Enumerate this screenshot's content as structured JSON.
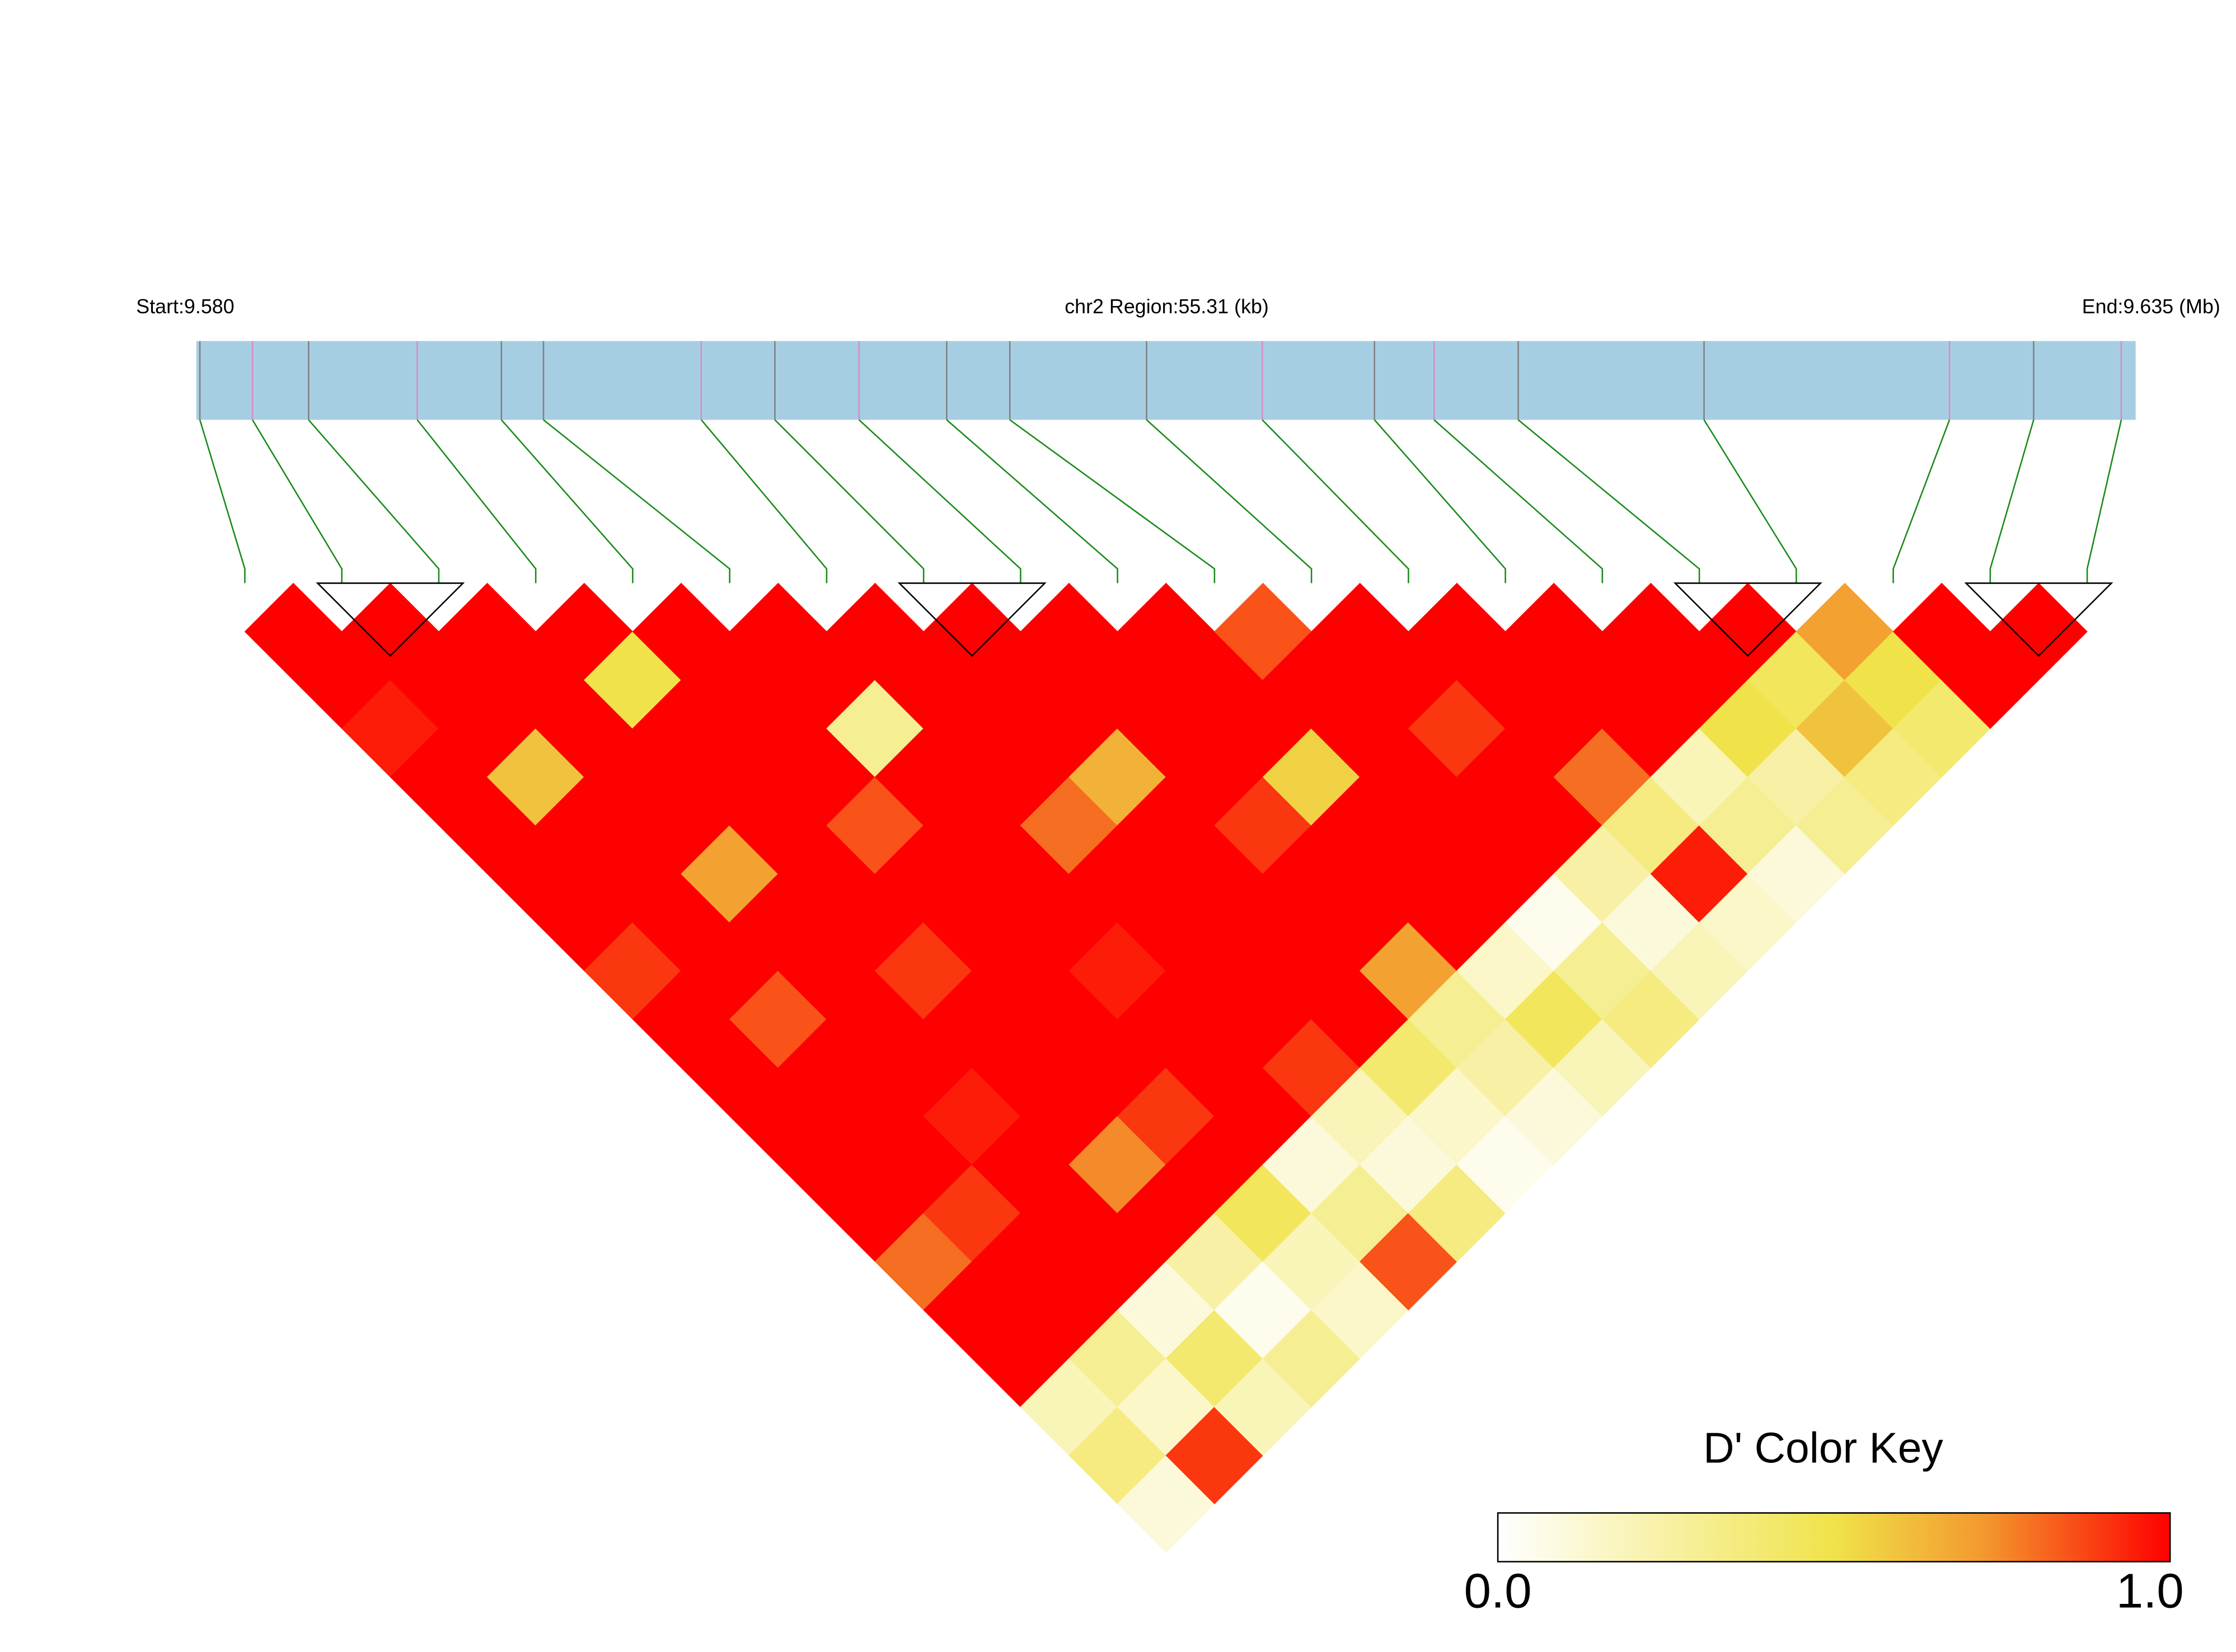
{
  "chart_data": {
    "type": "ld-heatmap",
    "start_label": "Start:9.580",
    "title": "chr2 Region:55.31 (kb)",
    "end_label": "End:9.635 (Mb)",
    "xlim": [
      9.58,
      9.63531
    ],
    "positions": [
      9.5801,
      9.5816,
      9.5832,
      9.5863,
      9.5887,
      9.5899,
      9.5944,
      9.5965,
      9.5989,
      9.6014,
      9.6032,
      9.6071,
      9.6104,
      9.6136,
      9.6153,
      9.6177,
      9.623,
      9.63,
      9.6324,
      9.6349
    ],
    "marker_colors": [
      "#808080",
      "#d98cc0",
      "#808080",
      "#d98cc0",
      "#808080",
      "#808080",
      "#d98cc0",
      "#808080",
      "#d98cc0",
      "#808080",
      "#808080",
      "#808080",
      "#d98cc0",
      "#808080",
      "#d98cc0",
      "#808080",
      "#808080",
      "#d98cc0",
      "#808080",
      "#d98cc0"
    ],
    "track_color": "#a6cee3",
    "connector_color": "#1a8a1a",
    "matrix": [
      [
        1,
        1,
        0.95,
        1,
        1,
        1,
        1,
        0.9,
        1,
        1,
        1,
        1,
        1,
        0.8,
        1,
        1,
        0.2,
        0.35,
        0.1
      ],
      [
        1,
        1,
        1,
        0.6,
        1,
        1,
        1,
        1,
        0.85,
        1,
        1,
        1,
        0.9,
        1,
        1,
        0.3,
        0.15,
        0.9
      ],
      [
        1,
        1,
        1,
        1,
        1,
        0.7,
        1,
        1,
        1,
        1,
        0.95,
        1,
        1,
        1,
        0.1,
        0.4,
        0.2
      ],
      [
        1,
        0.5,
        1,
        1,
        1,
        1,
        1,
        0.9,
        1,
        1,
        1,
        0.75,
        1,
        0.25,
        0.05,
        0.3
      ],
      [
        1,
        1,
        1,
        1,
        0.85,
        1,
        1,
        1,
        1,
        1,
        0.9,
        1,
        0.45,
        0.2,
        0.15
      ],
      [
        1,
        1,
        0.3,
        1,
        1,
        1,
        1,
        0.95,
        1,
        1,
        1,
        0.1,
        0.3,
        0.85
      ],
      [
        1,
        1,
        1,
        1,
        0.8,
        1,
        1,
        1,
        1,
        0.9,
        0.2,
        0.1,
        0.35
      ],
      [
        1,
        1,
        1,
        0.65,
        1,
        1,
        1,
        1,
        1,
        0.4,
        0.15,
        0.05
      ],
      [
        1,
        1,
        1,
        1,
        0.9,
        1,
        1,
        0.7,
        0.3,
        0.25,
        0.1
      ],
      [
        1,
        1,
        1,
        0.55,
        1,
        1,
        1,
        0.15,
        0.45,
        0.2
      ],
      [
        0.85,
        1,
        1,
        1,
        1,
        1,
        0.05,
        0.3,
        0.35
      ],
      [
        1,
        1,
        0.9,
        1,
        1,
        0.25,
        0.1,
        0.2
      ],
      [
        1,
        1,
        1,
        0.8,
        0.35,
        0.95,
        0.15
      ],
      [
        1,
        1,
        1,
        0.2,
        0.3,
        0.1
      ],
      [
        1,
        1,
        0.5,
        0.25,
        0.3
      ],
      [
        1,
        0.45,
        0.6,
        0.35
      ],
      [
        0.7,
        0.5,
        0.4
      ],
      [
        1,
        1
      ],
      [
        1
      ]
    ],
    "blocks": [
      [
        1,
        2
      ],
      [
        7,
        8
      ],
      [
        15,
        16
      ],
      [
        18,
        19
      ]
    ],
    "colorscale": [
      [
        0,
        "#ffffff"
      ],
      [
        0.5,
        "#f0e34a"
      ],
      [
        0.72,
        "#f39a2e"
      ],
      [
        1,
        "#ff0000"
      ]
    ],
    "color_key": {
      "title": "D' Color Key",
      "ticks": [
        {
          "value": 0,
          "label": "0.0"
        },
        {
          "value": 1,
          "label": "1.0"
        }
      ]
    }
  }
}
